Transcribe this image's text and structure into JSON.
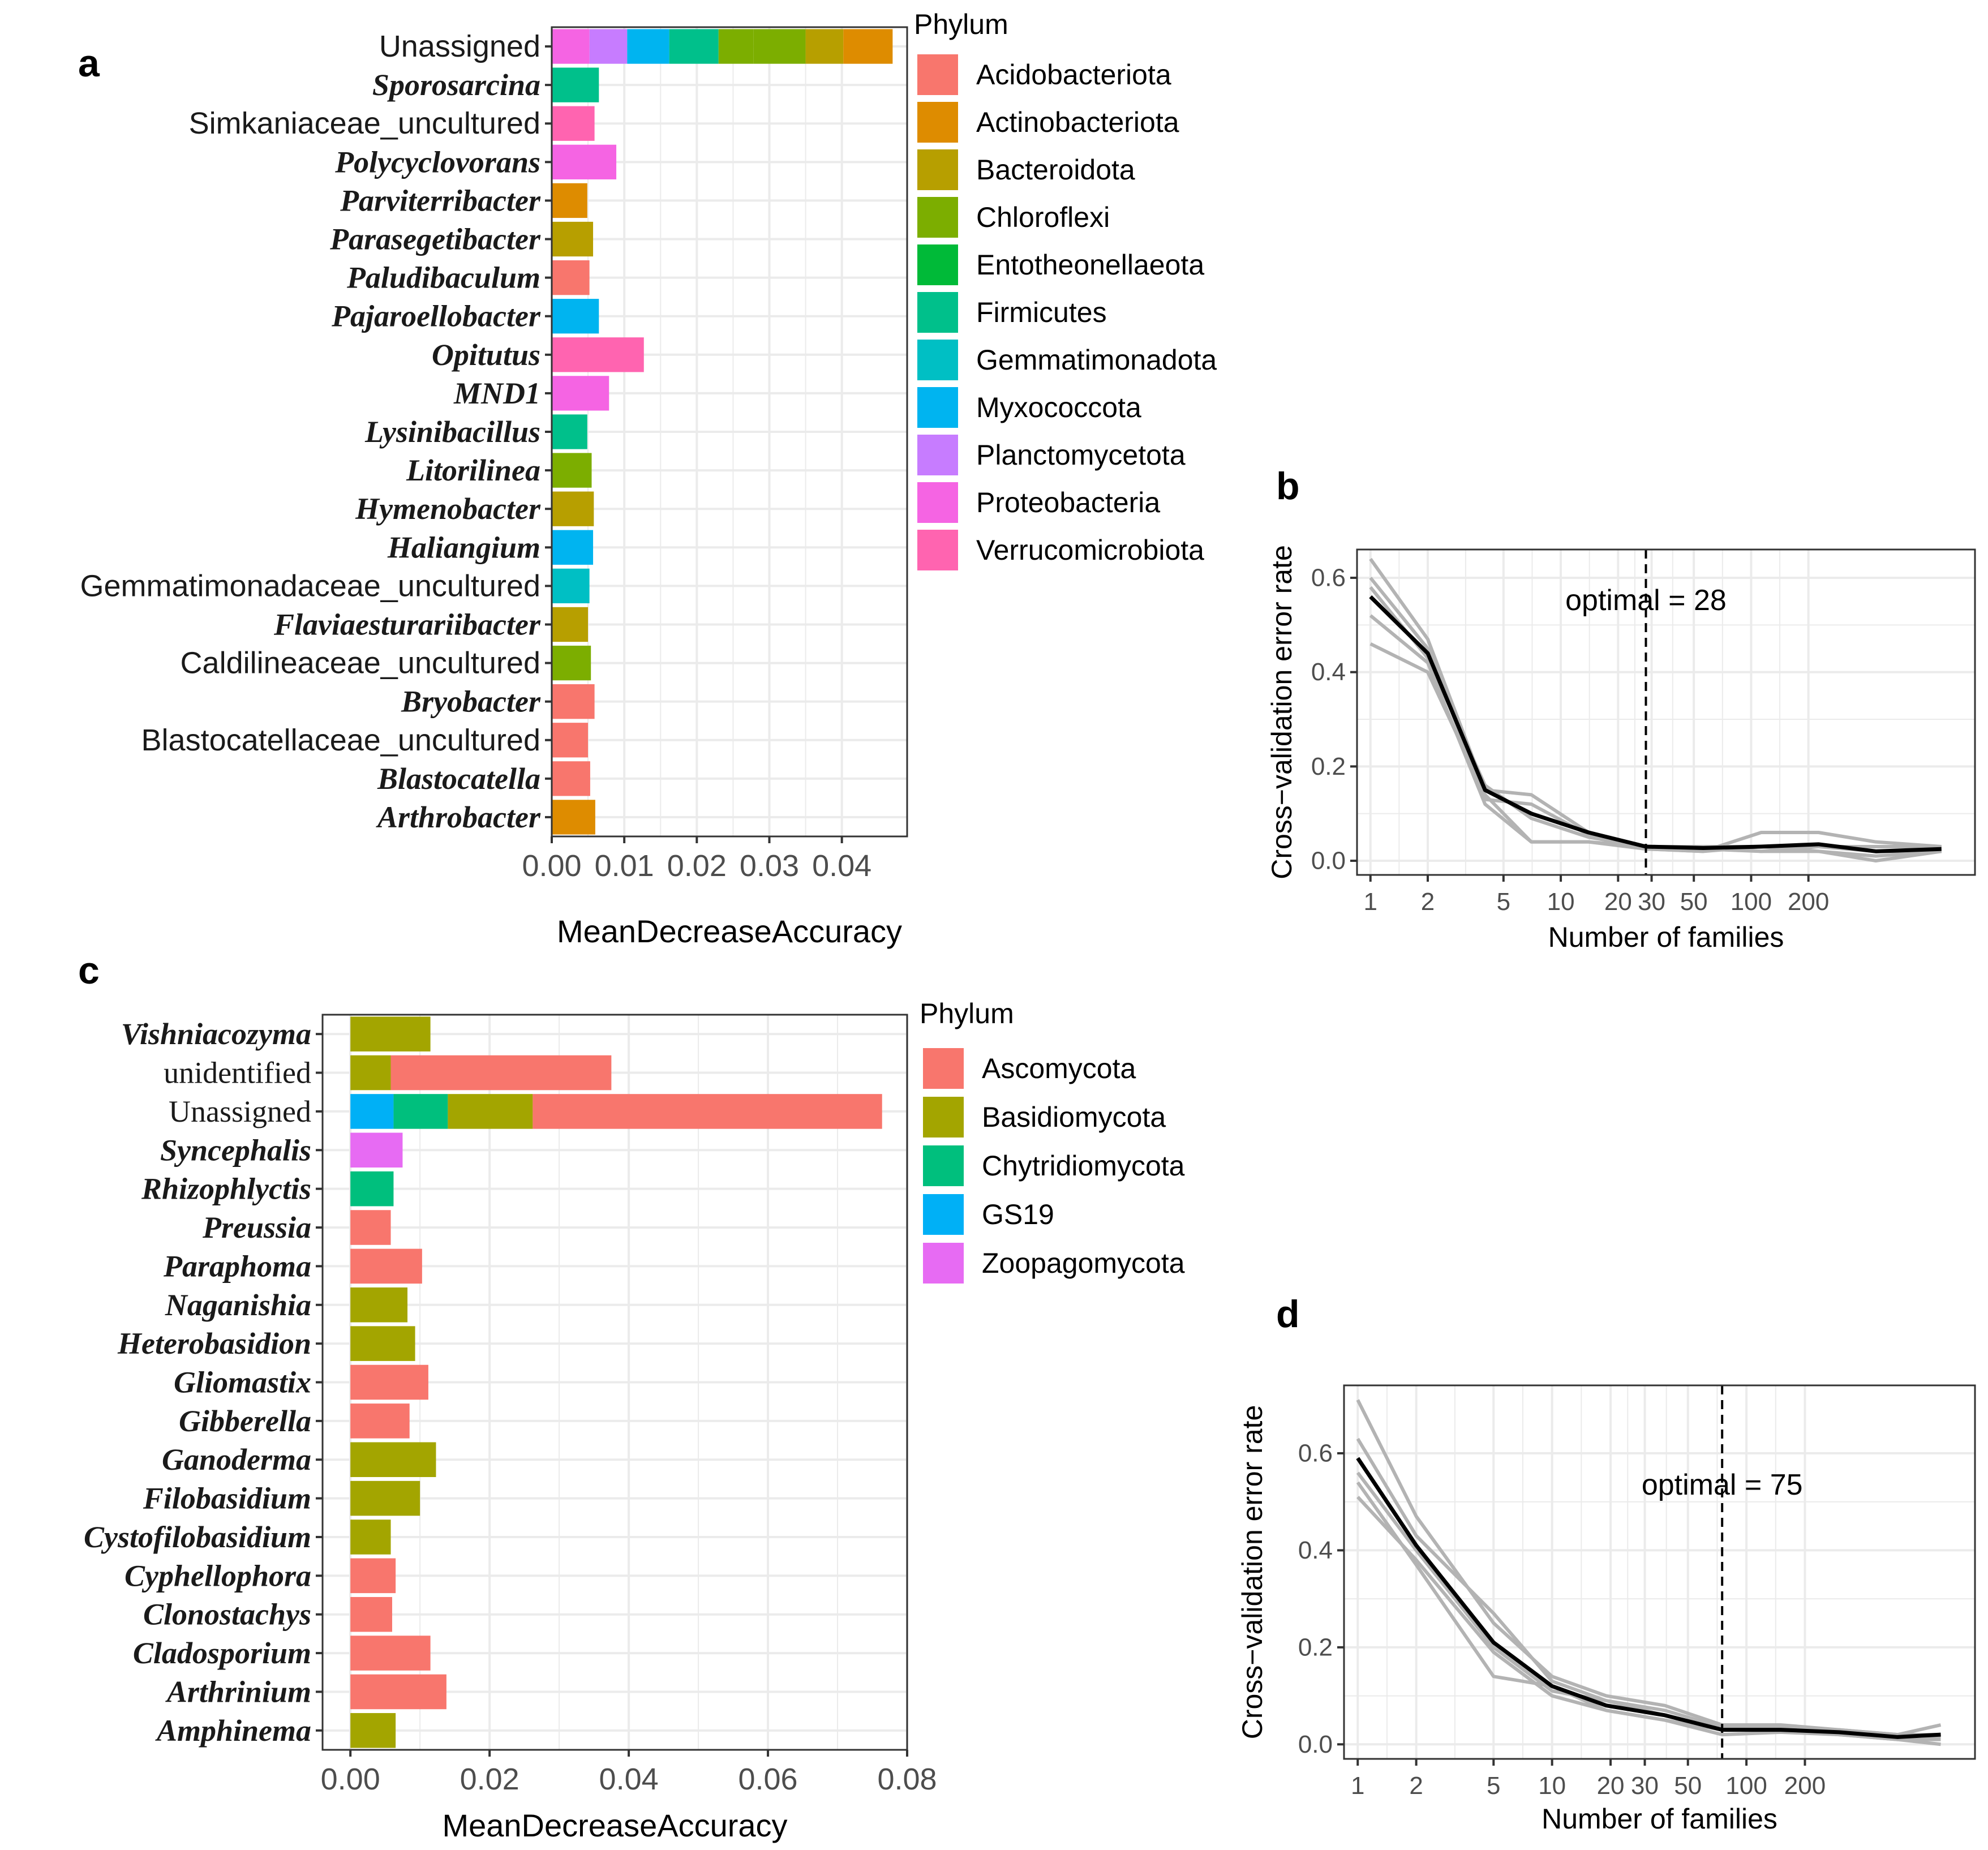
{
  "figure": {
    "panel_labels": [
      "a",
      "b",
      "c",
      "d"
    ]
  },
  "chart_data": [
    {
      "id": "a",
      "type": "bar",
      "orientation": "horizontal",
      "stacked": true,
      "xlabel": "MeanDecreaseAccuracy",
      "xlim": [
        0,
        0.049
      ],
      "x_ticks": [
        {
          "value": 0.0,
          "label": "0.00"
        },
        {
          "value": 0.01,
          "label": "0.01"
        },
        {
          "value": 0.02,
          "label": "0.02"
        },
        {
          "value": 0.03,
          "label": "0.03"
        },
        {
          "value": 0.04,
          "label": "0.04"
        }
      ],
      "legend": {
        "title": "Phylum",
        "position": "right",
        "entries": [
          {
            "name": "Acidobacteriota",
            "color": "#F8766D"
          },
          {
            "name": "Actinobacteriota",
            "color": "#DE8C00"
          },
          {
            "name": "Bacteroidota",
            "color": "#B79F00"
          },
          {
            "name": "Chloroflexi",
            "color": "#7CAE00"
          },
          {
            "name": "Entotheonellaeota",
            "color": "#00BA38"
          },
          {
            "name": "Firmicutes",
            "color": "#00C08B"
          },
          {
            "name": "Gemmatimonadota",
            "color": "#00BFC4"
          },
          {
            "name": "Myxococcota",
            "color": "#00B4F0"
          },
          {
            "name": "Planctomycetota",
            "color": "#C77CFF"
          },
          {
            "name": "Proteobacteria",
            "color": "#F564E3"
          },
          {
            "name": "Verrucomicrobiota",
            "color": "#FF64B0"
          }
        ]
      },
      "bars": [
        {
          "label": "Unassigned",
          "italic": false,
          "segments": [
            {
              "phylum": "Proteobacteria",
              "value": 0.0052
            },
            {
              "phylum": "Planctomycetota",
              "value": 0.0052
            },
            {
              "phylum": "Myxococcota",
              "value": 0.0058
            },
            {
              "phylum": "Firmicutes",
              "value": 0.0068
            },
            {
              "phylum": "Chloroflexi",
              "value": 0.0048
            },
            {
              "phylum": "Chloroflexi",
              "value": 0.0072
            },
            {
              "phylum": "Bacteroidota",
              "value": 0.0052
            },
            {
              "phylum": "Actinobacteriota",
              "value": 0.0068
            }
          ]
        },
        {
          "label": "Sporosarcina",
          "italic": true,
          "segments": [
            {
              "phylum": "Firmicutes",
              "value": 0.0065
            }
          ]
        },
        {
          "label": "Simkaniaceae_uncultured",
          "italic": false,
          "segments": [
            {
              "phylum": "Verrucomicrobiota",
              "value": 0.0059
            }
          ]
        },
        {
          "label": "Polycyclovorans",
          "italic": true,
          "segments": [
            {
              "phylum": "Proteobacteria",
              "value": 0.0089
            }
          ]
        },
        {
          "label": "Parviterribacter",
          "italic": true,
          "segments": [
            {
              "phylum": "Actinobacteriota",
              "value": 0.0049
            }
          ]
        },
        {
          "label": "Parasegetibacter",
          "italic": true,
          "segments": [
            {
              "phylum": "Bacteroidota",
              "value": 0.0057
            }
          ]
        },
        {
          "label": "Paludibaculum",
          "italic": true,
          "segments": [
            {
              "phylum": "Acidobacteriota",
              "value": 0.0052
            }
          ]
        },
        {
          "label": "Pajaroellobacter",
          "italic": true,
          "segments": [
            {
              "phylum": "Myxococcota",
              "value": 0.0065
            }
          ]
        },
        {
          "label": "Opitutus",
          "italic": true,
          "segments": [
            {
              "phylum": "Verrucomicrobiota",
              "value": 0.0127
            }
          ]
        },
        {
          "label": "MND1",
          "italic": true,
          "segments": [
            {
              "phylum": "Proteobacteria",
              "value": 0.0079
            }
          ]
        },
        {
          "label": "Lysinibacillus",
          "italic": true,
          "segments": [
            {
              "phylum": "Firmicutes",
              "value": 0.0049
            }
          ]
        },
        {
          "label": "Litorilinea",
          "italic": true,
          "segments": [
            {
              "phylum": "Chloroflexi",
              "value": 0.0055
            }
          ]
        },
        {
          "label": "Hymenobacter",
          "italic": true,
          "segments": [
            {
              "phylum": "Bacteroidota",
              "value": 0.0058
            }
          ]
        },
        {
          "label": "Haliangium",
          "italic": true,
          "segments": [
            {
              "phylum": "Myxococcota",
              "value": 0.0057
            }
          ]
        },
        {
          "label": "Gemmatimonadaceae_uncultured",
          "italic": false,
          "segments": [
            {
              "phylum": "Gemmatimonadota",
              "value": 0.0052
            }
          ]
        },
        {
          "label": "Flaviaesturariibacter",
          "italic": true,
          "segments": [
            {
              "phylum": "Bacteroidota",
              "value": 0.005
            }
          ]
        },
        {
          "label": "Caldilineaceae_uncultured",
          "italic": false,
          "segments": [
            {
              "phylum": "Chloroflexi",
              "value": 0.0054
            }
          ]
        },
        {
          "label": "Bryobacter",
          "italic": true,
          "segments": [
            {
              "phylum": "Acidobacteriota",
              "value": 0.0059
            }
          ]
        },
        {
          "label": "Blastocatellaceae_uncultured",
          "italic": false,
          "segments": [
            {
              "phylum": "Acidobacteriota",
              "value": 0.005
            }
          ]
        },
        {
          "label": "Blastocatella",
          "italic": true,
          "segments": [
            {
              "phylum": "Acidobacteriota",
              "value": 0.0053
            }
          ]
        },
        {
          "label": "Arthrobacter",
          "italic": true,
          "segments": [
            {
              "phylum": "Actinobacteriota",
              "value": 0.006
            }
          ]
        }
      ]
    },
    {
      "id": "b",
      "type": "line",
      "xscale": "log",
      "xlabel": "Number of families",
      "ylabel": "Cross−validation error rate",
      "xlim": [
        0.85,
        1500
      ],
      "ylim": [
        -0.03,
        0.66
      ],
      "x_ticks": [
        {
          "value": 1,
          "label": "1"
        },
        {
          "value": 2,
          "label": "2"
        },
        {
          "value": 5,
          "label": "5"
        },
        {
          "value": 10,
          "label": "10"
        },
        {
          "value": 20,
          "label": "20"
        },
        {
          "value": 30,
          "label": "30"
        },
        {
          "value": 50,
          "label": "50"
        },
        {
          "value": 100,
          "label": "100"
        },
        {
          "value": 200,
          "label": "200"
        }
      ],
      "y_ticks": [
        {
          "value": 0.0,
          "label": "0.0"
        },
        {
          "value": 0.2,
          "label": "0.2"
        },
        {
          "value": 0.4,
          "label": "0.4"
        },
        {
          "value": 0.6,
          "label": "0.6"
        }
      ],
      "optimal": {
        "value": 28,
        "label": "optimal = 28"
      },
      "x": [
        1,
        2,
        4,
        7,
        14,
        28,
        56,
        113,
        226,
        452,
        1000
      ],
      "series": [
        {
          "name": "mean",
          "values": [
            0.56,
            0.44,
            0.15,
            0.1,
            0.06,
            0.03,
            0.027,
            0.03,
            0.035,
            0.02,
            0.025
          ]
        },
        {
          "name": "cv1",
          "values": [
            0.64,
            0.47,
            0.15,
            0.14,
            0.06,
            0.025,
            0.02,
            0.06,
            0.06,
            0.04,
            0.03
          ]
        },
        {
          "name": "cv2",
          "values": [
            0.6,
            0.45,
            0.13,
            0.12,
            0.055,
            0.03,
            0.025,
            0.02,
            0.03,
            0.03,
            0.03
          ]
        },
        {
          "name": "cv3",
          "values": [
            0.58,
            0.43,
            0.16,
            0.09,
            0.05,
            0.03,
            0.03,
            0.03,
            0.03,
            0.02,
            0.02
          ]
        },
        {
          "name": "cv4",
          "values": [
            0.52,
            0.42,
            0.12,
            0.04,
            0.04,
            0.025,
            0.02,
            0.03,
            0.02,
            0.0,
            0.02
          ]
        },
        {
          "name": "cv5",
          "values": [
            0.46,
            0.4,
            0.14,
            0.04,
            0.04,
            0.03,
            0.03,
            0.02,
            0.02,
            0.01,
            0.02
          ]
        }
      ]
    },
    {
      "id": "c",
      "type": "bar",
      "orientation": "horizontal",
      "stacked": true,
      "xlabel": "MeanDecreaseAccuracy",
      "xlim": [
        -0.004,
        0.08
      ],
      "x_ticks": [
        {
          "value": 0.0,
          "label": "0.00"
        },
        {
          "value": 0.02,
          "label": "0.02"
        },
        {
          "value": 0.04,
          "label": "0.04"
        },
        {
          "value": 0.06,
          "label": "0.06"
        },
        {
          "value": 0.08,
          "label": "0.08"
        }
      ],
      "legend": {
        "title": "Phylum",
        "position": "right",
        "entries": [
          {
            "name": "Ascomycota",
            "color": "#F8766D"
          },
          {
            "name": "Basidiomycota",
            "color": "#A3A500"
          },
          {
            "name": "Chytridiomycota",
            "color": "#00BF7D"
          },
          {
            "name": "GS19",
            "color": "#00B0F6"
          },
          {
            "name": "Zoopagomycota",
            "color": "#E76BF3"
          }
        ]
      },
      "bars": [
        {
          "label": "Vishniacozyma",
          "italic": true,
          "segments": [
            {
              "phylum": "Basidiomycota",
              "value": 0.0115
            }
          ]
        },
        {
          "label": "unidentified",
          "italic": false,
          "segments": [
            {
              "phylum": "Basidiomycota",
              "value": 0.0058
            },
            {
              "phylum": "Ascomycota",
              "value": 0.0317
            }
          ]
        },
        {
          "label": "Unassigned",
          "italic": false,
          "segments": [
            {
              "phylum": "GS19",
              "value": 0.0062
            },
            {
              "phylum": "Chytridiomycota",
              "value": 0.0078
            },
            {
              "phylum": "Basidiomycota",
              "value": 0.0122
            },
            {
              "phylum": "Ascomycota",
              "value": 0.0502
            }
          ]
        },
        {
          "label": "Syncephalis",
          "italic": true,
          "segments": [
            {
              "phylum": "Zoopagomycota",
              "value": 0.0075
            }
          ]
        },
        {
          "label": "Rhizophlyctis",
          "italic": true,
          "segments": [
            {
              "phylum": "Chytridiomycota",
              "value": 0.0062
            }
          ]
        },
        {
          "label": "Preussia",
          "italic": true,
          "segments": [
            {
              "phylum": "Ascomycota",
              "value": 0.0058
            }
          ]
        },
        {
          "label": "Paraphoma",
          "italic": true,
          "segments": [
            {
              "phylum": "Ascomycota",
              "value": 0.0103
            }
          ]
        },
        {
          "label": "Naganishia",
          "italic": true,
          "segments": [
            {
              "phylum": "Basidiomycota",
              "value": 0.0082
            }
          ]
        },
        {
          "label": "Heterobasidion",
          "italic": true,
          "segments": [
            {
              "phylum": "Basidiomycota",
              "value": 0.0093
            }
          ]
        },
        {
          "label": "Gliomastix",
          "italic": true,
          "segments": [
            {
              "phylum": "Ascomycota",
              "value": 0.0112
            }
          ]
        },
        {
          "label": "Gibberella",
          "italic": true,
          "segments": [
            {
              "phylum": "Ascomycota",
              "value": 0.0085
            }
          ]
        },
        {
          "label": "Ganoderma",
          "italic": true,
          "segments": [
            {
              "phylum": "Basidiomycota",
              "value": 0.0123
            }
          ]
        },
        {
          "label": "Filobasidium",
          "italic": true,
          "segments": [
            {
              "phylum": "Basidiomycota",
              "value": 0.01
            }
          ]
        },
        {
          "label": "Cystofilobasidium",
          "italic": true,
          "segments": [
            {
              "phylum": "Basidiomycota",
              "value": 0.0058
            }
          ]
        },
        {
          "label": "Cyphellophora",
          "italic": true,
          "segments": [
            {
              "phylum": "Ascomycota",
              "value": 0.0065
            }
          ]
        },
        {
          "label": "Clonostachys",
          "italic": true,
          "segments": [
            {
              "phylum": "Ascomycota",
              "value": 0.006
            }
          ]
        },
        {
          "label": "Cladosporium",
          "italic": true,
          "segments": [
            {
              "phylum": "Ascomycota",
              "value": 0.0115
            }
          ]
        },
        {
          "label": "Arthrinium",
          "italic": true,
          "segments": [
            {
              "phylum": "Ascomycota",
              "value": 0.0138
            }
          ]
        },
        {
          "label": "Amphinema",
          "italic": true,
          "segments": [
            {
              "phylum": "Basidiomycota",
              "value": 0.0065
            }
          ]
        }
      ]
    },
    {
      "id": "d",
      "type": "line",
      "xscale": "log",
      "xlabel": "Number of families",
      "ylabel": "Cross−validation error rate",
      "xlim": [
        0.85,
        1500
      ],
      "ylim": [
        -0.03,
        0.74
      ],
      "x_ticks": [
        {
          "value": 1,
          "label": "1"
        },
        {
          "value": 2,
          "label": "2"
        },
        {
          "value": 5,
          "label": "5"
        },
        {
          "value": 10,
          "label": "10"
        },
        {
          "value": 20,
          "label": "20"
        },
        {
          "value": 30,
          "label": "30"
        },
        {
          "value": 50,
          "label": "50"
        },
        {
          "value": 100,
          "label": "100"
        },
        {
          "value": 200,
          "label": "200"
        }
      ],
      "y_ticks": [
        {
          "value": 0.0,
          "label": "0.0"
        },
        {
          "value": 0.2,
          "label": "0.2"
        },
        {
          "value": 0.4,
          "label": "0.4"
        },
        {
          "value": 0.6,
          "label": "0.6"
        }
      ],
      "optimal": {
        "value": 75,
        "label": "optimal = 75"
      },
      "x": [
        1,
        2,
        5,
        10,
        19,
        38,
        75,
        150,
        300,
        600,
        1000
      ],
      "series": [
        {
          "name": "mean",
          "values": [
            0.59,
            0.41,
            0.21,
            0.12,
            0.08,
            0.06,
            0.03,
            0.03,
            0.025,
            0.015,
            0.02
          ]
        },
        {
          "name": "cv1",
          "values": [
            0.71,
            0.47,
            0.25,
            0.14,
            0.1,
            0.08,
            0.04,
            0.04,
            0.03,
            0.02,
            0.04
          ]
        },
        {
          "name": "cv2",
          "values": [
            0.63,
            0.43,
            0.27,
            0.13,
            0.09,
            0.07,
            0.035,
            0.035,
            0.03,
            0.02,
            0.02
          ]
        },
        {
          "name": "cv3",
          "values": [
            0.56,
            0.4,
            0.2,
            0.11,
            0.09,
            0.06,
            0.03,
            0.03,
            0.02,
            0.01,
            0.01
          ]
        },
        {
          "name": "cv4",
          "values": [
            0.54,
            0.37,
            0.14,
            0.12,
            0.07,
            0.05,
            0.03,
            0.03,
            0.02,
            0.02,
            0.015
          ]
        },
        {
          "name": "cv5",
          "values": [
            0.51,
            0.38,
            0.19,
            0.1,
            0.07,
            0.05,
            0.02,
            0.025,
            0.02,
            0.01,
            0.0
          ]
        }
      ]
    }
  ]
}
